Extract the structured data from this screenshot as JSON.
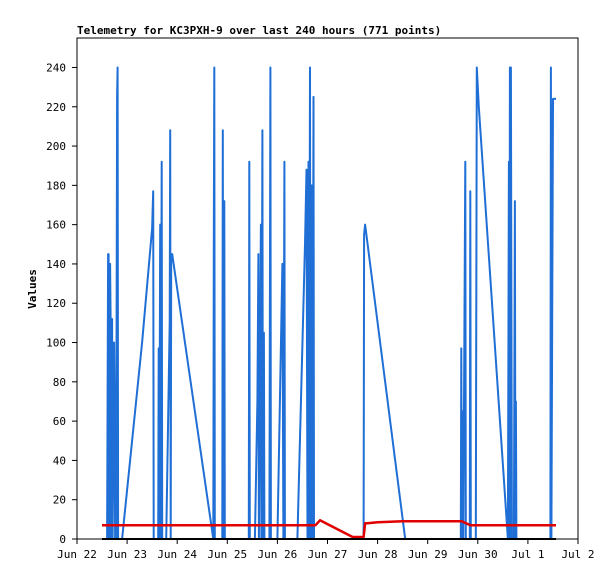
{
  "chart_data": {
    "type": "line",
    "title": "Telemetry for KC3PXH-9 over last 240 hours (771 points)",
    "xlabel": "",
    "ylabel": "Values",
    "x_tick_labels": [
      "Jun 22",
      "Jun 23",
      "Jun 24",
      "Jun 25",
      "Jun 26",
      "Jun 27",
      "Jun 28",
      "Jun 29",
      "Jun 30",
      "Jul 1",
      "Jul 2"
    ],
    "x_range_days": [
      0,
      10
    ],
    "y_ticks": [
      0,
      20,
      40,
      60,
      80,
      100,
      120,
      140,
      160,
      180,
      200,
      220,
      240
    ],
    "ylim": [
      0,
      255
    ],
    "grid": false,
    "legend": "none",
    "series": [
      {
        "color": "#1f6fd6",
        "points": [
          [
            0.5,
            0
          ],
          [
            0.6,
            0
          ],
          [
            0.62,
            145
          ],
          [
            0.63,
            145
          ],
          [
            0.64,
            0
          ],
          [
            0.66,
            140
          ],
          [
            0.67,
            112
          ],
          [
            0.68,
            0
          ],
          [
            0.69,
            112
          ],
          [
            0.7,
            112
          ],
          [
            0.71,
            0
          ],
          [
            0.74,
            100
          ],
          [
            0.75,
            70
          ],
          [
            0.76,
            0
          ],
          [
            0.77,
            42
          ],
          [
            0.78,
            0
          ],
          [
            0.8,
            225
          ],
          [
            0.81,
            240
          ],
          [
            0.82,
            0
          ],
          [
            0.9,
            0
          ],
          [
            1.3,
            100
          ],
          [
            1.5,
            158
          ],
          [
            1.52,
            177
          ],
          [
            1.53,
            0
          ],
          [
            1.62,
            0
          ],
          [
            1.63,
            97
          ],
          [
            1.64,
            0
          ],
          [
            1.66,
            160
          ],
          [
            1.67,
            0
          ],
          [
            1.69,
            192
          ],
          [
            1.7,
            0
          ],
          [
            1.78,
            0
          ],
          [
            1.85,
            110
          ],
          [
            1.86,
            208
          ],
          [
            1.87,
            0
          ],
          [
            1.88,
            145
          ],
          [
            1.9,
            145
          ],
          [
            2.72,
            0
          ],
          [
            2.73,
            150
          ],
          [
            2.74,
            240
          ],
          [
            2.75,
            0
          ],
          [
            2.9,
            0
          ],
          [
            2.91,
            208
          ],
          [
            2.92,
            0
          ],
          [
            2.94,
            172
          ],
          [
            2.95,
            0
          ],
          [
            3.43,
            0
          ],
          [
            3.44,
            192
          ],
          [
            3.45,
            0
          ],
          [
            3.55,
            0
          ],
          [
            3.6,
            70
          ],
          [
            3.62,
            145
          ],
          [
            3.63,
            0
          ],
          [
            3.67,
            160
          ],
          [
            3.68,
            0
          ],
          [
            3.7,
            208
          ],
          [
            3.71,
            0
          ],
          [
            3.73,
            105
          ],
          [
            3.74,
            0
          ],
          [
            3.84,
            0
          ],
          [
            3.86,
            240
          ],
          [
            3.87,
            0
          ],
          [
            4.0,
            0
          ],
          [
            4.1,
            140
          ],
          [
            4.12,
            0
          ],
          [
            4.14,
            192
          ],
          [
            4.15,
            0
          ],
          [
            4.4,
            0
          ],
          [
            4.55,
            150
          ],
          [
            4.58,
            188
          ],
          [
            4.6,
            0
          ],
          [
            4.62,
            192
          ],
          [
            4.63,
            0
          ],
          [
            4.65,
            240
          ],
          [
            4.66,
            0
          ],
          [
            4.68,
            180
          ],
          [
            4.7,
            0
          ],
          [
            4.72,
            225
          ],
          [
            4.73,
            0
          ],
          [
            5.72,
            0
          ],
          [
            5.73,
            155
          ],
          [
            5.75,
            160
          ],
          [
            6.55,
            0
          ],
          [
            7.66,
            0
          ],
          [
            7.67,
            97
          ],
          [
            7.68,
            0
          ],
          [
            7.7,
            65
          ],
          [
            7.71,
            0
          ],
          [
            7.75,
            192
          ],
          [
            7.76,
            0
          ],
          [
            7.84,
            0
          ],
          [
            7.85,
            177
          ],
          [
            7.86,
            0
          ],
          [
            7.96,
            0
          ],
          [
            7.98,
            240
          ],
          [
            8.02,
            220
          ],
          [
            8.6,
            0
          ],
          [
            8.62,
            192
          ],
          [
            8.63,
            0
          ],
          [
            8.64,
            240
          ],
          [
            8.65,
            0
          ],
          [
            8.66,
            240
          ],
          [
            8.67,
            120
          ],
          [
            8.68,
            0
          ],
          [
            8.72,
            0
          ],
          [
            8.74,
            172
          ],
          [
            8.75,
            0
          ],
          [
            8.76,
            70
          ],
          [
            8.77,
            0
          ],
          [
            9.45,
            0
          ],
          [
            9.46,
            240
          ],
          [
            9.47,
            0
          ],
          [
            9.5,
            224
          ],
          [
            9.56,
            224
          ]
        ]
      },
      {
        "color": "#e00000",
        "points": [
          [
            0.5,
            7
          ],
          [
            1.0,
            7
          ],
          [
            2.0,
            7
          ],
          [
            3.0,
            7
          ],
          [
            4.0,
            7
          ],
          [
            4.76,
            7
          ],
          [
            4.85,
            9.5
          ],
          [
            5.5,
            1
          ],
          [
            5.72,
            1
          ],
          [
            5.75,
            8
          ],
          [
            5.8,
            8
          ],
          [
            6.0,
            8.5
          ],
          [
            6.5,
            9
          ],
          [
            7.0,
            9
          ],
          [
            7.68,
            9
          ],
          [
            7.85,
            7
          ],
          [
            8.5,
            7
          ],
          [
            9.0,
            7
          ],
          [
            9.56,
            7
          ]
        ]
      },
      {
        "color": "#000000",
        "points": [
          [
            0.5,
            0
          ],
          [
            9.56,
            0
          ]
        ]
      }
    ]
  }
}
